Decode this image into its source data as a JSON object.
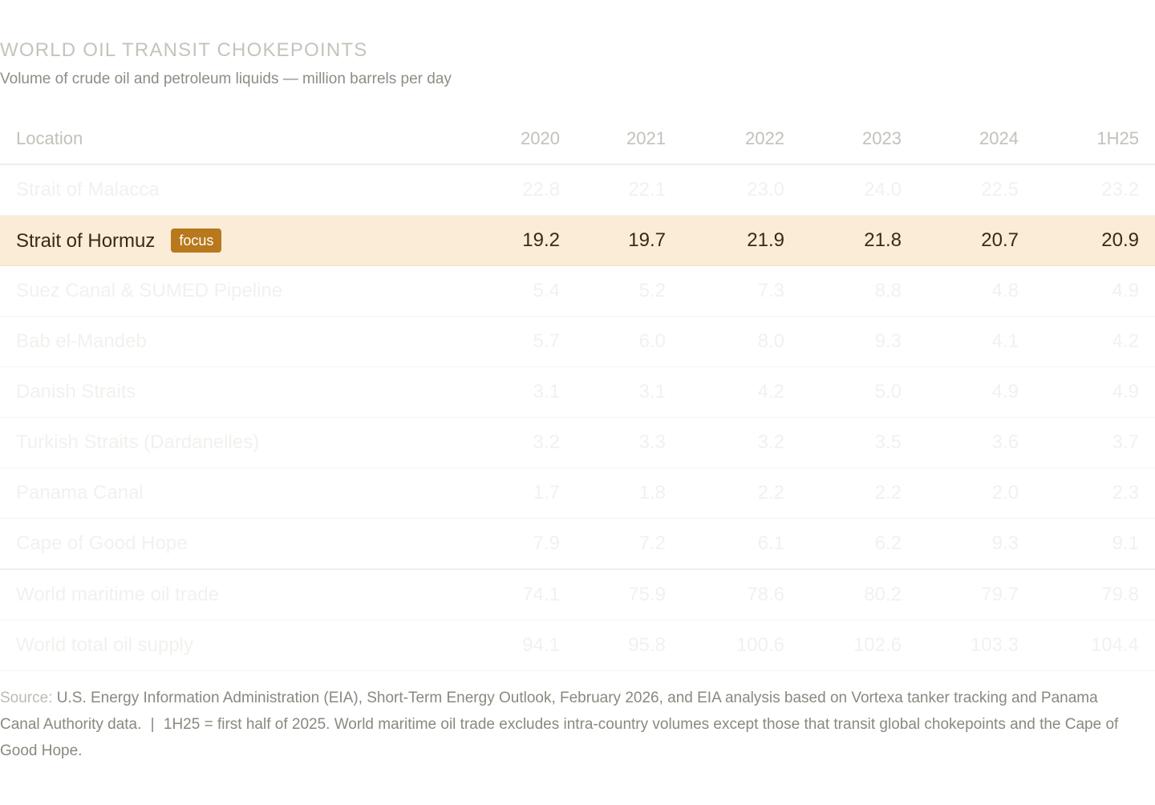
{
  "header": {
    "title": "WORLD OIL TRANSIT CHOKEPOINTS",
    "subtitle": "Volume of crude oil and petroleum liquids — million barrels per day"
  },
  "chart_data": {
    "type": "table",
    "title": "WORLD OIL TRANSIT CHOKEPOINTS",
    "subtitle": "Volume of crude oil and petroleum liquids — million barrels per day",
    "columns": [
      "Location",
      "2020",
      "2021",
      "2022",
      "2023",
      "2024",
      "1H25"
    ],
    "rows": [
      {
        "location": "Strait of Malacca",
        "values": [
          "22.8",
          "22.1",
          "23.0",
          "24.0",
          "22.5",
          "23.2"
        ],
        "focus": false,
        "aggregate": false
      },
      {
        "location": "Strait of Hormuz",
        "values": [
          "19.2",
          "19.7",
          "21.9",
          "21.8",
          "20.7",
          "20.9"
        ],
        "focus": true,
        "badge": "focus",
        "aggregate": false
      },
      {
        "location": "Suez Canal & SUMED Pipeline",
        "values": [
          "5.4",
          "5.2",
          "7.3",
          "8.8",
          "4.8",
          "4.9"
        ],
        "focus": false,
        "aggregate": false
      },
      {
        "location": "Bab el-Mandeb",
        "values": [
          "5.7",
          "6.0",
          "8.0",
          "9.3",
          "4.1",
          "4.2"
        ],
        "focus": false,
        "aggregate": false
      },
      {
        "location": "Danish Straits",
        "values": [
          "3.1",
          "3.1",
          "4.2",
          "5.0",
          "4.9",
          "4.9"
        ],
        "focus": false,
        "aggregate": false
      },
      {
        "location": "Turkish Straits (Dardanelles)",
        "values": [
          "3.2",
          "3.3",
          "3.2",
          "3.5",
          "3.6",
          "3.7"
        ],
        "focus": false,
        "aggregate": false
      },
      {
        "location": "Panama Canal",
        "values": [
          "1.7",
          "1.8",
          "2.2",
          "2.2",
          "2.0",
          "2.3"
        ],
        "focus": false,
        "aggregate": false
      },
      {
        "location": "Cape of Good Hope",
        "values": [
          "7.9",
          "7.2",
          "6.1",
          "6.2",
          "9.3",
          "9.1"
        ],
        "focus": false,
        "aggregate": false
      },
      {
        "location": "World maritime oil trade",
        "values": [
          "74.1",
          "75.9",
          "78.6",
          "80.2",
          "79.7",
          "79.8"
        ],
        "focus": false,
        "aggregate": true
      },
      {
        "location": "World total oil supply",
        "values": [
          "94.1",
          "95.8",
          "100.6",
          "102.6",
          "103.3",
          "104.4"
        ],
        "focus": false,
        "aggregate": false
      }
    ]
  },
  "footer": {
    "source_label": "Source:",
    "source_text": "U.S. Energy Information Administration (EIA), Short-Term Energy Outlook, February 2026, and EIA analysis based on Vortexa tanker tracking and Panama Canal Authority data.",
    "separator": "|",
    "note": "1H25 = first half of 2025. World maritime oil trade excludes intra-country volumes except those that transit global chokepoints and the Cape of Good Hope."
  },
  "colors": {
    "focus_row_background": "#faecd7",
    "focus_badge": "#b8781c",
    "focus_text": "#3a2a10",
    "muted_text": "#f2f1ee"
  }
}
